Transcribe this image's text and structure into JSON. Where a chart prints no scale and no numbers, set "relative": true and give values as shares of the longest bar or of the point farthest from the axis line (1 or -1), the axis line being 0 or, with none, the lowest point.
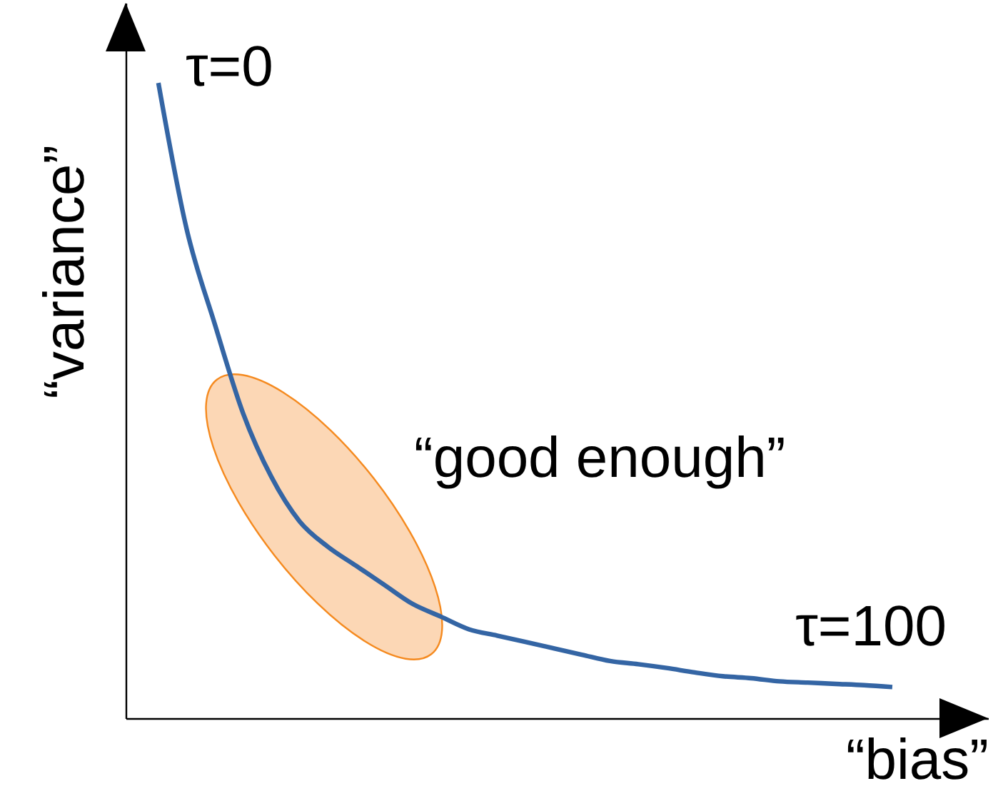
{
  "chart_data": {
    "type": "line",
    "relative": true,
    "xlabel": "“bias”",
    "ylabel": "“variance”",
    "annotations": [
      "τ=0",
      "“good enough”",
      "τ=100"
    ],
    "categories": [
      null,
      null,
      null,
      null,
      null,
      null,
      null,
      null,
      null,
      null,
      null,
      null,
      null,
      null,
      null,
      null,
      null,
      null,
      null,
      null,
      null,
      null,
      null,
      null,
      null,
      null,
      null
    ],
    "series": [
      {
        "color": "#3465a4",
        "values": [
          1,
          0.77,
          0.62,
          0.48,
          0.38,
          0.31,
          0.27,
          0.24,
          0.21,
          0.18,
          0.16,
          0.14,
          0.13,
          0.12,
          0.11,
          0.1,
          0.09,
          0.085,
          0.079,
          0.072,
          0.066,
          0.063,
          0.058,
          0.056,
          0.054,
          0.052,
          0.049
        ]
      }
    ]
  }
}
